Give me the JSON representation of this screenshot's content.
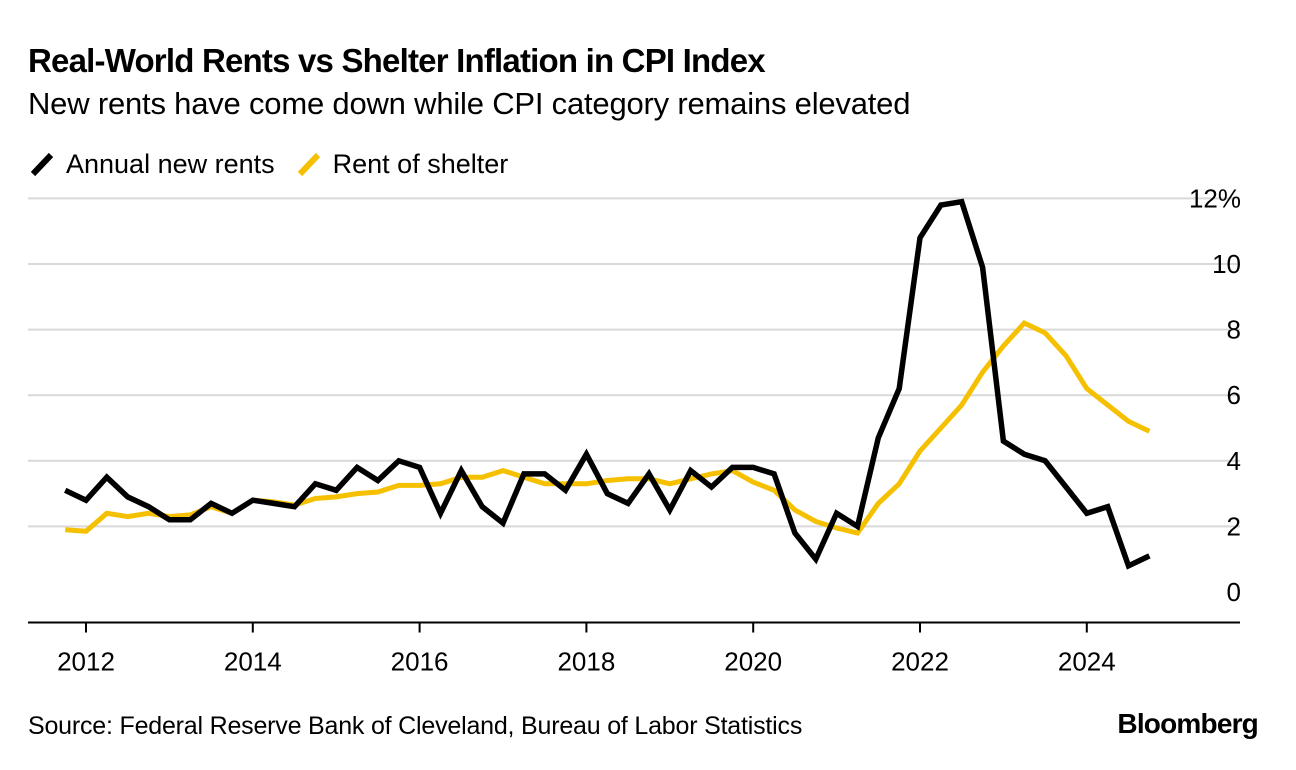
{
  "header": {
    "title": "Real-World Rents vs Shelter Inflation in CPI Index",
    "subtitle": "New rents have come down while CPI category remains elevated"
  },
  "footer": {
    "source": "Source: Federal Reserve Bank of Cleveland, Bureau of Labor Statistics",
    "brand": "Bloomberg"
  },
  "colors": {
    "new_rents": "#000000",
    "shelter": "#f5c000",
    "grid": "#d9d9d9",
    "axis": "#000000"
  },
  "chart_data": {
    "type": "line",
    "title": "Real-World Rents vs Shelter Inflation in CPI Index",
    "subtitle": "New rents have come down while CPI category remains elevated",
    "xlabel": "",
    "ylabel": "",
    "xlim": [
      2011.3,
      2025.85
    ],
    "ylim": [
      -0.9,
      12
    ],
    "y_ticks": [
      0,
      2,
      4,
      6,
      8,
      10,
      12
    ],
    "y_tick_labels": [
      "0",
      "2",
      "4",
      "6",
      "8",
      "10",
      "12%"
    ],
    "x_ticks": [
      2012,
      2014,
      2016,
      2018,
      2020,
      2022,
      2024
    ],
    "x_tick_labels": [
      "2012",
      "2014",
      "2016",
      "2018",
      "2020",
      "2022",
      "2024"
    ],
    "grid": true,
    "legend_position": "top-left",
    "series": [
      {
        "name": "Annual new rents",
        "color": "#000000",
        "x": [
          2011.75,
          2012.0,
          2012.25,
          2012.5,
          2012.75,
          2013.0,
          2013.25,
          2013.5,
          2013.75,
          2014.0,
          2014.25,
          2014.5,
          2014.75,
          2015.0,
          2015.25,
          2015.5,
          2015.75,
          2016.0,
          2016.25,
          2016.5,
          2016.75,
          2017.0,
          2017.25,
          2017.5,
          2017.75,
          2018.0,
          2018.25,
          2018.5,
          2018.75,
          2019.0,
          2019.25,
          2019.5,
          2019.75,
          2020.0,
          2020.25,
          2020.5,
          2020.75,
          2021.0,
          2021.25,
          2021.5,
          2021.75,
          2022.0,
          2022.25,
          2022.5,
          2022.75,
          2023.0,
          2023.25,
          2023.5,
          2023.75,
          2024.0,
          2024.25,
          2024.5,
          2024.75
        ],
        "values": [
          3.1,
          2.8,
          3.5,
          2.9,
          2.6,
          2.2,
          2.2,
          2.7,
          2.4,
          2.8,
          2.7,
          2.6,
          3.3,
          3.1,
          3.8,
          3.4,
          4.0,
          3.8,
          2.4,
          3.7,
          2.6,
          2.1,
          3.6,
          3.6,
          3.1,
          4.2,
          3.0,
          2.7,
          3.6,
          2.5,
          3.7,
          3.2,
          3.8,
          3.8,
          3.6,
          1.8,
          1.0,
          2.4,
          2.0,
          4.7,
          6.2,
          10.8,
          11.8,
          11.9,
          9.9,
          4.6,
          4.2,
          4.0,
          3.2,
          2.4,
          2.6,
          0.8,
          1.1
        ]
      },
      {
        "name": "Rent of shelter",
        "color": "#f5c000",
        "x": [
          2011.75,
          2012.0,
          2012.25,
          2012.5,
          2012.75,
          2013.0,
          2013.25,
          2013.5,
          2013.75,
          2014.0,
          2014.25,
          2014.5,
          2014.75,
          2015.0,
          2015.25,
          2015.5,
          2015.75,
          2016.0,
          2016.25,
          2016.5,
          2016.75,
          2017.0,
          2017.25,
          2017.5,
          2017.75,
          2018.0,
          2018.25,
          2018.5,
          2018.75,
          2019.0,
          2019.25,
          2019.5,
          2019.75,
          2020.0,
          2020.25,
          2020.5,
          2020.75,
          2021.0,
          2021.25,
          2021.5,
          2021.75,
          2022.0,
          2022.25,
          2022.5,
          2022.75,
          2023.0,
          2023.25,
          2023.5,
          2023.75,
          2024.0,
          2024.25,
          2024.5,
          2024.75
        ],
        "values": [
          1.9,
          1.85,
          2.4,
          2.3,
          2.4,
          2.3,
          2.35,
          2.6,
          2.4,
          2.8,
          2.75,
          2.65,
          2.85,
          2.9,
          3.0,
          3.05,
          3.25,
          3.25,
          3.3,
          3.5,
          3.5,
          3.7,
          3.5,
          3.3,
          3.3,
          3.3,
          3.4,
          3.45,
          3.45,
          3.3,
          3.45,
          3.6,
          3.7,
          3.35,
          3.1,
          2.5,
          2.15,
          1.95,
          1.8,
          2.7,
          3.3,
          4.3,
          5.0,
          5.7,
          6.7,
          7.5,
          8.2,
          7.9,
          7.2,
          6.2,
          5.7,
          5.2,
          4.9
        ]
      }
    ]
  }
}
